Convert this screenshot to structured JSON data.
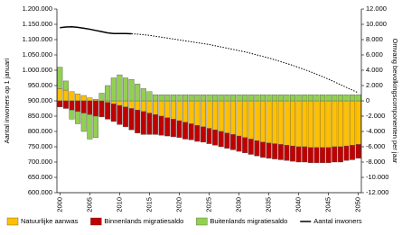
{
  "chart_data": {
    "type": "bar",
    "stacked": true,
    "y_label": "Aantal inwoners op 1 januari",
    "y2_label": "Omvang bevolkingscomponenten per jaar",
    "categories": [
      "2000",
      null,
      null,
      null,
      null,
      "2005",
      null,
      null,
      null,
      null,
      "2010",
      null,
      null,
      null,
      null,
      "2015",
      null,
      null,
      null,
      null,
      "2020",
      null,
      null,
      null,
      null,
      "2025",
      null,
      null,
      null,
      null,
      "2030",
      null,
      null,
      null,
      null,
      "2035",
      null,
      null,
      null,
      null,
      "2040",
      null,
      null,
      null,
      null,
      "2045",
      null,
      null,
      null,
      null,
      "2050"
    ],
    "ylim": [
      600000,
      1200000
    ],
    "yticks": [
      {
        "value": 600000,
        "label": "600.000"
      },
      {
        "value": 650000,
        "label": "650.000"
      },
      {
        "value": 700000,
        "label": "700.000"
      },
      {
        "value": 750000,
        "label": "750.000"
      },
      {
        "value": 800000,
        "label": "800.000"
      },
      {
        "value": 850000,
        "label": "850.000"
      },
      {
        "value": 900000,
        "label": "900.000"
      },
      {
        "value": 950000,
        "label": "950.000"
      },
      {
        "value": 1000000,
        "label": "1.000.000"
      },
      {
        "value": 1050000,
        "label": "1.050.000"
      },
      {
        "value": 1100000,
        "label": "1.100.000"
      },
      {
        "value": 1150000,
        "label": "1.150.000"
      },
      {
        "value": 1200000,
        "label": "1.200.000"
      }
    ],
    "y2lim": [
      -12000,
      12000
    ],
    "y2ticks": [
      {
        "value": -12000,
        "label": "-12.000"
      },
      {
        "value": -10000,
        "label": "-10.000"
      },
      {
        "value": -8000,
        "label": "-8.000"
      },
      {
        "value": -6000,
        "label": "-6.000"
      },
      {
        "value": -4000,
        "label": "-4.000"
      },
      {
        "value": -2000,
        "label": "-2.000"
      },
      0,
      {
        "value": 2000,
        "label": "2.000"
      },
      {
        "value": 4000,
        "label": "4.000"
      },
      {
        "value": 6000,
        "label": "6.000"
      },
      {
        "value": 8000,
        "label": "8.000"
      },
      {
        "value": 10000,
        "label": "10.000"
      },
      {
        "value": 12000,
        "label": "12.000"
      }
    ],
    "grid": false,
    "series": [
      {
        "name": "Natuurlijke aanwas",
        "color": "#ffc000",
        "axis": "y2",
        "values": [
          1600,
          1400,
          1200,
          900,
          700,
          400,
          200,
          0,
          -200,
          -400,
          -600,
          -800,
          -1000,
          -1200,
          -1400,
          -1600,
          -1800,
          -2000,
          -2200,
          -2400,
          -2600,
          -2800,
          -3000,
          -3200,
          -3400,
          -3600,
          -3800,
          -4000,
          -4200,
          -4400,
          -4600,
          -4800,
          -5000,
          -5200,
          -5400,
          -5500,
          -5600,
          -5700,
          -5800,
          -5900,
          -6000,
          -6000,
          -6100,
          -6100,
          -6100,
          -6100,
          -6000,
          -6000,
          -5900,
          -5800,
          -5700
        ]
      },
      {
        "name": "Binnenlands migratiesaldo",
        "color": "#c00000",
        "axis": "y2",
        "values": [
          -800,
          -1000,
          -1200,
          -1400,
          -1600,
          -1800,
          -2000,
          -2100,
          -2200,
          -2300,
          -2500,
          -2600,
          -2800,
          -3000,
          -3000,
          -2800,
          -2600,
          -2500,
          -2400,
          -2300,
          -2200,
          -2200,
          -2100,
          -2100,
          -2000,
          -2000,
          -2000,
          -2000,
          -2000,
          -2000,
          -2000,
          -2000,
          -2000,
          -2000,
          -2000,
          -2000,
          -2000,
          -2000,
          -2000,
          -2000,
          -2000,
          -2000,
          -2000,
          -2000,
          -2000,
          -2000,
          -2000,
          -2000,
          -1900,
          -1900,
          -1800
        ]
      },
      {
        "name": "Buitenlands migratiesaldo",
        "color": "#92d050",
        "axis": "y2",
        "values": [
          2800,
          1200,
          -1200,
          -1600,
          -2400,
          -3200,
          -2800,
          1000,
          2000,
          3000,
          3400,
          3000,
          2800,
          2200,
          1600,
          1200,
          800,
          800,
          800,
          800,
          800,
          800,
          800,
          800,
          800,
          800,
          800,
          800,
          800,
          800,
          800,
          800,
          800,
          800,
          800,
          800,
          800,
          800,
          800,
          800,
          800,
          800,
          800,
          800,
          800,
          800,
          800,
          800,
          800,
          800,
          800
        ]
      },
      {
        "name": "Aantal inwoners",
        "color": "#000000",
        "type": "line",
        "axis": "y",
        "values": [
          1139000,
          1141000,
          1142000,
          1140000,
          1137000,
          1134000,
          1130000,
          1126000,
          1122000,
          1120000,
          1120000,
          1120000,
          1119000,
          null,
          null,
          null,
          null,
          null,
          null,
          null,
          null,
          null,
          null,
          null,
          null,
          null,
          null,
          null,
          null,
          null,
          null,
          null,
          null,
          null,
          null,
          null,
          null,
          null,
          null,
          null,
          null,
          null,
          null,
          null,
          null,
          null,
          null,
          null,
          null,
          null,
          null
        ]
      },
      {
        "color": "#000000",
        "type": "line",
        "linestyle": "dotted",
        "axis": "y",
        "values": [
          null,
          null,
          null,
          null,
          null,
          null,
          null,
          null,
          null,
          null,
          null,
          null,
          1119000,
          1118000,
          1116000,
          1114000,
          1111000,
          1108000,
          1105000,
          1102000,
          1099000,
          1096000,
          1093000,
          1090000,
          1087000,
          1084000,
          1080000,
          1076000,
          1072000,
          1068000,
          1064000,
          1060000,
          1055000,
          1050000,
          1045000,
          1040000,
          1034000,
          1028000,
          1022000,
          1016000,
          1009000,
          1002000,
          995000,
          987000,
          979000,
          971000,
          962000,
          953000,
          944000,
          935000,
          926000
        ]
      }
    ]
  }
}
